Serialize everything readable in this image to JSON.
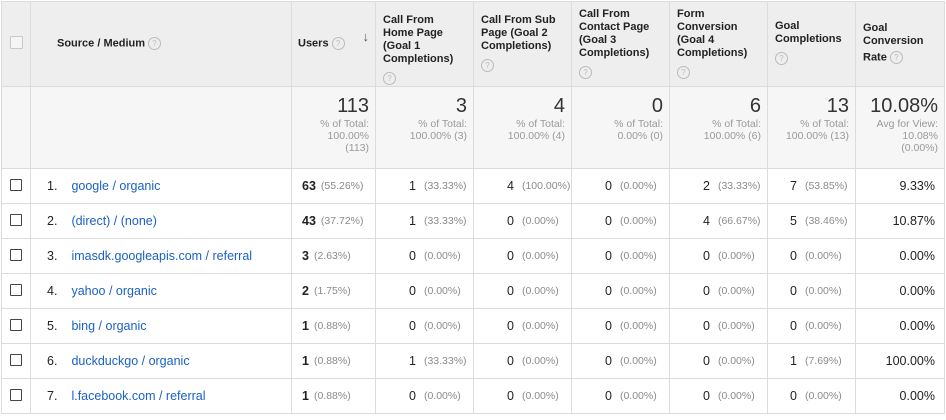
{
  "header": {
    "source_medium": "Source / Medium",
    "users": "Users",
    "goal1": "Call From Home Page (Goal 1 Completions)",
    "goal2": "Call From Sub Page (Goal 2 Completions)",
    "goal3": "Call From Contact Page (Goal 3 Completions)",
    "goal4": "Form Conversion (Goal 4 Completions)",
    "goal_completions": "Goal Completions",
    "goal_conversion_rate_line1": "Goal",
    "goal_conversion_rate_line2": "Conversion",
    "goal_conversion_rate_line3": "Rate",
    "help_glyph": "?",
    "sort_glyph": "↓"
  },
  "totals": {
    "users": {
      "value": "113",
      "l1": "% of Total:",
      "l2": "100.00%",
      "l3": "(113)"
    },
    "goal1": {
      "value": "3",
      "l1": "% of Total:",
      "l2": "100.00% (3)"
    },
    "goal2": {
      "value": "4",
      "l1": "% of Total:",
      "l2": "100.00% (4)"
    },
    "goal3": {
      "value": "0",
      "l1": "% of Total:",
      "l2": "0.00% (0)"
    },
    "goal4": {
      "value": "6",
      "l1": "% of Total:",
      "l2": "100.00% (6)"
    },
    "goal_completions": {
      "value": "13",
      "l1": "% of Total:",
      "l2": "100.00% (13)"
    },
    "rate": {
      "value": "10.08%",
      "l1": "Avg for View:",
      "l2": "10.08%",
      "l3": "(0.00%)"
    }
  },
  "rows": [
    {
      "idx": "1.",
      "source": "google / organic",
      "users": "63",
      "users_pct": "(55.26%)",
      "g1": "1",
      "g1p": "(33.33%)",
      "g2": "4",
      "g2p": "(100.00%)",
      "g3": "0",
      "g3p": "(0.00%)",
      "g4": "2",
      "g4p": "(33.33%)",
      "gc": "7",
      "gcp": "(53.85%)",
      "rate": "9.33%"
    },
    {
      "idx": "2.",
      "source": "(direct) / (none)",
      "users": "43",
      "users_pct": "(37.72%)",
      "g1": "1",
      "g1p": "(33.33%)",
      "g2": "0",
      "g2p": "(0.00%)",
      "g3": "0",
      "g3p": "(0.00%)",
      "g4": "4",
      "g4p": "(66.67%)",
      "gc": "5",
      "gcp": "(38.46%)",
      "rate": "10.87%"
    },
    {
      "idx": "3.",
      "source": "imasdk.googleapis.com / referral",
      "users": "3",
      "users_pct": "(2.63%)",
      "g1": "0",
      "g1p": "(0.00%)",
      "g2": "0",
      "g2p": "(0.00%)",
      "g3": "0",
      "g3p": "(0.00%)",
      "g4": "0",
      "g4p": "(0.00%)",
      "gc": "0",
      "gcp": "(0.00%)",
      "rate": "0.00%"
    },
    {
      "idx": "4.",
      "source": "yahoo / organic",
      "users": "2",
      "users_pct": "(1.75%)",
      "g1": "0",
      "g1p": "(0.00%)",
      "g2": "0",
      "g2p": "(0.00%)",
      "g3": "0",
      "g3p": "(0.00%)",
      "g4": "0",
      "g4p": "(0.00%)",
      "gc": "0",
      "gcp": "(0.00%)",
      "rate": "0.00%"
    },
    {
      "idx": "5.",
      "source": "bing / organic",
      "users": "1",
      "users_pct": "(0.88%)",
      "g1": "0",
      "g1p": "(0.00%)",
      "g2": "0",
      "g2p": "(0.00%)",
      "g3": "0",
      "g3p": "(0.00%)",
      "g4": "0",
      "g4p": "(0.00%)",
      "gc": "0",
      "gcp": "(0.00%)",
      "rate": "0.00%"
    },
    {
      "idx": "6.",
      "source": "duckduckgo / organic",
      "users": "1",
      "users_pct": "(0.88%)",
      "g1": "1",
      "g1p": "(33.33%)",
      "g2": "0",
      "g2p": "(0.00%)",
      "g3": "0",
      "g3p": "(0.00%)",
      "g4": "0",
      "g4p": "(0.00%)",
      "gc": "1",
      "gcp": "(7.69%)",
      "rate": "100.00%"
    },
    {
      "idx": "7.",
      "source": "l.facebook.com / referral",
      "users": "1",
      "users_pct": "(0.88%)",
      "g1": "0",
      "g1p": "(0.00%)",
      "g2": "0",
      "g2p": "(0.00%)",
      "g3": "0",
      "g3p": "(0.00%)",
      "g4": "0",
      "g4p": "(0.00%)",
      "gc": "0",
      "gcp": "(0.00%)",
      "rate": "0.00%"
    }
  ]
}
